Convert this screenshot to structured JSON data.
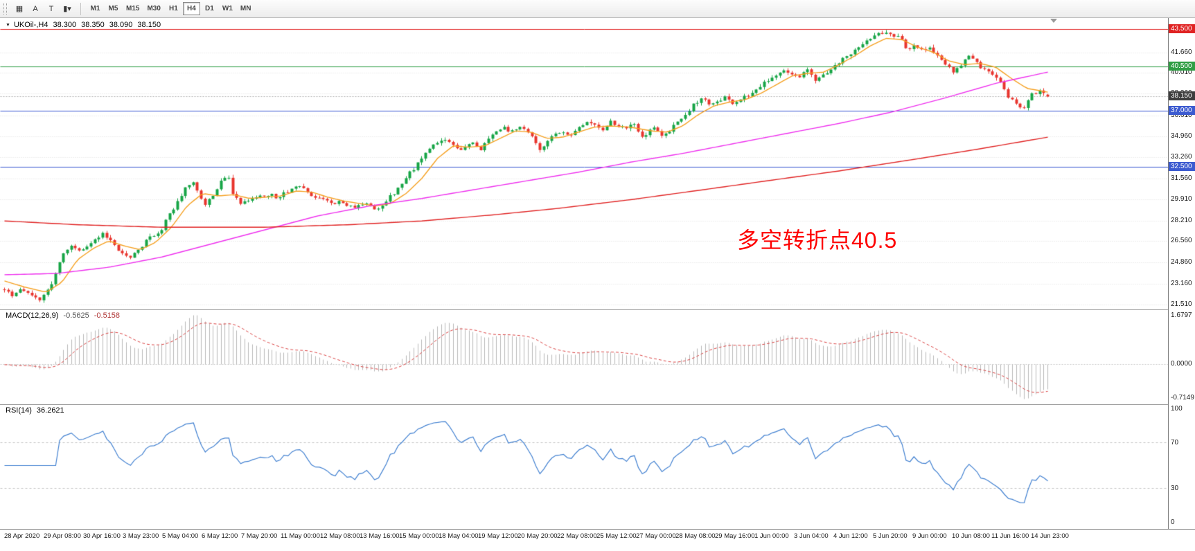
{
  "icons": {
    "dropdown": "▼"
  },
  "toolbar": {
    "buttons": [
      {
        "name": "new-chart-button",
        "icon_name": "chart-grid-icon",
        "glyph": "▦"
      },
      {
        "name": "cursor-button",
        "icon_name": "letter-a-icon",
        "glyph": "A"
      },
      {
        "name": "text-tool-button",
        "icon_name": "letter-t-icon",
        "glyph": "T"
      },
      {
        "name": "chart-style-button",
        "icon_name": "candles-dropdown-icon",
        "glyph": "▮▾"
      }
    ],
    "timeframes": [
      "M1",
      "M5",
      "M15",
      "M30",
      "H1",
      "H4",
      "D1",
      "W1",
      "MN"
    ],
    "active_timeframe": "H4"
  },
  "symbol_line": {
    "symbol": "UKOil-,H4",
    "open": "38.300",
    "high": "38.350",
    "low": "38.090",
    "close": "38.150"
  },
  "annotation": {
    "text": "多空转折点40.5",
    "color": "#fe0000"
  },
  "macd": {
    "display": "MACD(12,26,9)",
    "main_value": "-0.5625",
    "signal_value": "-0.5158",
    "axis_top": "1.6797",
    "axis_zero": "0.0000",
    "axis_bottom": "-0.7149"
  },
  "rsi": {
    "display": "RSI(14)",
    "value": "36.2621",
    "axis_ticks": [
      100,
      70,
      30,
      0
    ]
  },
  "colors": {
    "bull": "#17a546",
    "bear": "#e8352e",
    "ma_fast": "#f5a020",
    "ma_mid": "#ee2fee",
    "ma_slow": "#e02222",
    "macd_hist": "#b8b8b8",
    "macd_signal": "#d94040",
    "rsi": "#3f7fd0",
    "grid": "#dcdcdc",
    "current_badge": "#3d3d3d",
    "current_line": "#b0b0b0"
  },
  "chart_data": {
    "type": "candlestick",
    "symbol": "UKOil-",
    "timeframe": "H4",
    "last_ohlc": {
      "open": 38.3,
      "high": 38.35,
      "low": 38.09,
      "close": 38.15
    },
    "current_price": {
      "value": 38.15,
      "label": "38.150"
    },
    "price_axis": {
      "min": 21.1,
      "max": 44.4,
      "ticks": [
        41.66,
        40.01,
        38.36,
        36.61,
        34.96,
        33.26,
        31.56,
        29.91,
        28.21,
        26.56,
        24.86,
        23.16,
        21.51
      ]
    },
    "levels": [
      {
        "price": 43.5,
        "label": "43.500",
        "color": "#e02222"
      },
      {
        "price": 40.5,
        "label": "40.500",
        "color": "#2f9e44"
      },
      {
        "price": 37.0,
        "label": "37.000",
        "color": "#3c5bd0"
      },
      {
        "price": 32.5,
        "label": "32.500",
        "color": "#3c5bd0"
      }
    ],
    "candle_count": 266,
    "seed": 20200614,
    "noise": 0.34,
    "close_anchors": [
      [
        0.0,
        22.6
      ],
      [
        0.008,
        22.2
      ],
      [
        0.016,
        22.9
      ],
      [
        0.024,
        22.4
      ],
      [
        0.032,
        21.9
      ],
      [
        0.04,
        22.3
      ],
      [
        0.048,
        23.6
      ],
      [
        0.055,
        25.4
      ],
      [
        0.065,
        26.3
      ],
      [
        0.075,
        25.8
      ],
      [
        0.085,
        26.6
      ],
      [
        0.095,
        27.2
      ],
      [
        0.105,
        26.4
      ],
      [
        0.112,
        25.6
      ],
      [
        0.12,
        25.1
      ],
      [
        0.13,
        26.1
      ],
      [
        0.14,
        26.9
      ],
      [
        0.15,
        27.4
      ],
      [
        0.158,
        28.7
      ],
      [
        0.165,
        29.6
      ],
      [
        0.172,
        30.7
      ],
      [
        0.18,
        31.5
      ],
      [
        0.186,
        30.6
      ],
      [
        0.192,
        29.5
      ],
      [
        0.2,
        30.1
      ],
      [
        0.208,
        31.4
      ],
      [
        0.215,
        31.6
      ],
      [
        0.22,
        30.1
      ],
      [
        0.228,
        29.6
      ],
      [
        0.24,
        30.1
      ],
      [
        0.252,
        30.4
      ],
      [
        0.262,
        30.1
      ],
      [
        0.272,
        30.6
      ],
      [
        0.282,
        31.2
      ],
      [
        0.29,
        30.5
      ],
      [
        0.3,
        30.1
      ],
      [
        0.312,
        29.8
      ],
      [
        0.324,
        29.6
      ],
      [
        0.336,
        29.4
      ],
      [
        0.346,
        29.7
      ],
      [
        0.356,
        29.0
      ],
      [
        0.366,
        29.8
      ],
      [
        0.376,
        30.7
      ],
      [
        0.386,
        31.7
      ],
      [
        0.396,
        32.8
      ],
      [
        0.408,
        34.1
      ],
      [
        0.42,
        34.8
      ],
      [
        0.43,
        34.3
      ],
      [
        0.438,
        33.7
      ],
      [
        0.448,
        34.5
      ],
      [
        0.456,
        33.9
      ],
      [
        0.466,
        34.8
      ],
      [
        0.476,
        35.7
      ],
      [
        0.486,
        35.3
      ],
      [
        0.496,
        35.8
      ],
      [
        0.505,
        34.9
      ],
      [
        0.512,
        33.9
      ],
      [
        0.522,
        34.7
      ],
      [
        0.532,
        35.3
      ],
      [
        0.542,
        35.1
      ],
      [
        0.552,
        35.7
      ],
      [
        0.562,
        36.1
      ],
      [
        0.572,
        35.5
      ],
      [
        0.582,
        36.2
      ],
      [
        0.592,
        35.6
      ],
      [
        0.602,
        36.0
      ],
      [
        0.612,
        35.0
      ],
      [
        0.622,
        35.7
      ],
      [
        0.632,
        34.9
      ],
      [
        0.642,
        35.9
      ],
      [
        0.652,
        36.4
      ],
      [
        0.66,
        37.6
      ],
      [
        0.67,
        37.9
      ],
      [
        0.68,
        37.4
      ],
      [
        0.69,
        38.2
      ],
      [
        0.7,
        37.6
      ],
      [
        0.71,
        38.1
      ],
      [
        0.72,
        38.7
      ],
      [
        0.73,
        39.3
      ],
      [
        0.74,
        39.9
      ],
      [
        0.75,
        40.2
      ],
      [
        0.76,
        39.7
      ],
      [
        0.77,
        40.3
      ],
      [
        0.778,
        39.5
      ],
      [
        0.788,
        40.1
      ],
      [
        0.798,
        40.8
      ],
      [
        0.808,
        41.3
      ],
      [
        0.818,
        42.0
      ],
      [
        0.828,
        42.7
      ],
      [
        0.838,
        43.1
      ],
      [
        0.846,
        43.4
      ],
      [
        0.852,
        42.7
      ],
      [
        0.858,
        43.2
      ],
      [
        0.865,
        41.7
      ],
      [
        0.872,
        42.2
      ],
      [
        0.88,
        41.8
      ],
      [
        0.888,
        42.1
      ],
      [
        0.895,
        41.2
      ],
      [
        0.902,
        40.8
      ],
      [
        0.91,
        40.2
      ],
      [
        0.917,
        40.6
      ],
      [
        0.924,
        41.5
      ],
      [
        0.932,
        40.8
      ],
      [
        0.94,
        40.2
      ],
      [
        0.948,
        39.9
      ],
      [
        0.955,
        39.2
      ],
      [
        0.962,
        38.2
      ],
      [
        0.97,
        37.5
      ],
      [
        0.977,
        37.3
      ],
      [
        0.984,
        38.3
      ],
      [
        0.992,
        38.5
      ],
      [
        1.0,
        38.15
      ]
    ],
    "ma_lines": [
      {
        "name": "ma-fast-orange",
        "color": "#f5a020",
        "anchors": [
          [
            0.0,
            23.4
          ],
          [
            0.02,
            22.9
          ],
          [
            0.04,
            22.5
          ],
          [
            0.055,
            23.3
          ],
          [
            0.07,
            25.1
          ],
          [
            0.085,
            26.0
          ],
          [
            0.1,
            26.6
          ],
          [
            0.115,
            26.2
          ],
          [
            0.13,
            25.9
          ],
          [
            0.145,
            26.5
          ],
          [
            0.16,
            27.7
          ],
          [
            0.175,
            29.4
          ],
          [
            0.19,
            30.4
          ],
          [
            0.205,
            30.2
          ],
          [
            0.22,
            30.3
          ],
          [
            0.235,
            30.0
          ],
          [
            0.25,
            30.1
          ],
          [
            0.265,
            30.2
          ],
          [
            0.28,
            30.6
          ],
          [
            0.295,
            30.5
          ],
          [
            0.31,
            30.1
          ],
          [
            0.325,
            29.8
          ],
          [
            0.34,
            29.6
          ],
          [
            0.355,
            29.4
          ],
          [
            0.37,
            29.6
          ],
          [
            0.385,
            30.4
          ],
          [
            0.4,
            31.6
          ],
          [
            0.415,
            33.2
          ],
          [
            0.43,
            34.2
          ],
          [
            0.445,
            34.1
          ],
          [
            0.46,
            34.2
          ],
          [
            0.475,
            34.8
          ],
          [
            0.49,
            35.4
          ],
          [
            0.505,
            35.3
          ],
          [
            0.52,
            34.8
          ],
          [
            0.535,
            34.9
          ],
          [
            0.55,
            35.3
          ],
          [
            0.565,
            35.7
          ],
          [
            0.58,
            35.8
          ],
          [
            0.6,
            35.7
          ],
          [
            0.62,
            35.4
          ],
          [
            0.635,
            35.3
          ],
          [
            0.65,
            35.8
          ],
          [
            0.665,
            36.7
          ],
          [
            0.68,
            37.4
          ],
          [
            0.695,
            37.7
          ],
          [
            0.71,
            37.9
          ],
          [
            0.725,
            38.4
          ],
          [
            0.74,
            39.1
          ],
          [
            0.755,
            39.8
          ],
          [
            0.77,
            40.0
          ],
          [
            0.785,
            40.1
          ],
          [
            0.8,
            40.7
          ],
          [
            0.815,
            41.4
          ],
          [
            0.83,
            42.2
          ],
          [
            0.845,
            42.8
          ],
          [
            0.86,
            42.7
          ],
          [
            0.875,
            42.1
          ],
          [
            0.89,
            41.7
          ],
          [
            0.905,
            41.0
          ],
          [
            0.92,
            40.7
          ],
          [
            0.935,
            40.8
          ],
          [
            0.95,
            40.5
          ],
          [
            0.965,
            39.6
          ],
          [
            0.98,
            38.8
          ],
          [
            1.0,
            38.5
          ]
        ]
      },
      {
        "name": "ma-mid-magenta",
        "color": "#ee2fee",
        "anchors": [
          [
            0.0,
            23.9
          ],
          [
            0.05,
            24.0
          ],
          [
            0.1,
            24.5
          ],
          [
            0.15,
            25.3
          ],
          [
            0.2,
            26.4
          ],
          [
            0.25,
            27.5
          ],
          [
            0.3,
            28.6
          ],
          [
            0.35,
            29.4
          ],
          [
            0.4,
            30.0
          ],
          [
            0.45,
            30.7
          ],
          [
            0.5,
            31.4
          ],
          [
            0.55,
            32.1
          ],
          [
            0.6,
            32.9
          ],
          [
            0.65,
            33.6
          ],
          [
            0.7,
            34.4
          ],
          [
            0.75,
            35.2
          ],
          [
            0.8,
            36.0
          ],
          [
            0.85,
            36.9
          ],
          [
            0.9,
            38.0
          ],
          [
            0.95,
            39.2
          ],
          [
            1.0,
            40.1
          ]
        ]
      },
      {
        "name": "ma-slow-red",
        "color": "#e02222",
        "anchors": [
          [
            0.0,
            28.2
          ],
          [
            0.07,
            27.9
          ],
          [
            0.15,
            27.7
          ],
          [
            0.25,
            27.7
          ],
          [
            0.33,
            27.9
          ],
          [
            0.4,
            28.2
          ],
          [
            0.47,
            28.7
          ],
          [
            0.53,
            29.2
          ],
          [
            0.6,
            29.9
          ],
          [
            0.67,
            30.7
          ],
          [
            0.73,
            31.4
          ],
          [
            0.8,
            32.2
          ],
          [
            0.87,
            33.1
          ],
          [
            0.93,
            33.9
          ],
          [
            1.0,
            34.9
          ]
        ]
      }
    ],
    "macd": {
      "fast": 12,
      "slow": 26,
      "signal_period": 9
    },
    "rsi": {
      "period": 14,
      "levels": [
        70,
        30
      ]
    },
    "time_labels": [
      "28 Apr 2020",
      "29 Apr 08:00",
      "30 Apr 16:00",
      "3 May 23:00",
      "5 May 04:00",
      "6 May 12:00",
      "7 May 20:00",
      "11 May 00:00",
      "12 May 08:00",
      "13 May 16:00",
      "15 May 00:00",
      "18 May 04:00",
      "19 May 12:00",
      "20 May 20:00",
      "22 May 08:00",
      "25 May 12:00",
      "27 May 00:00",
      "28 May 08:00",
      "29 May 16:00",
      "1 Jun 00:00",
      "3 Jun 04:00",
      "4 Jun 12:00",
      "5 Jun 20:00",
      "9 Jun 00:00",
      "10 Jun 08:00",
      "11 Jun 16:00",
      "14 Jun 23:00"
    ]
  }
}
